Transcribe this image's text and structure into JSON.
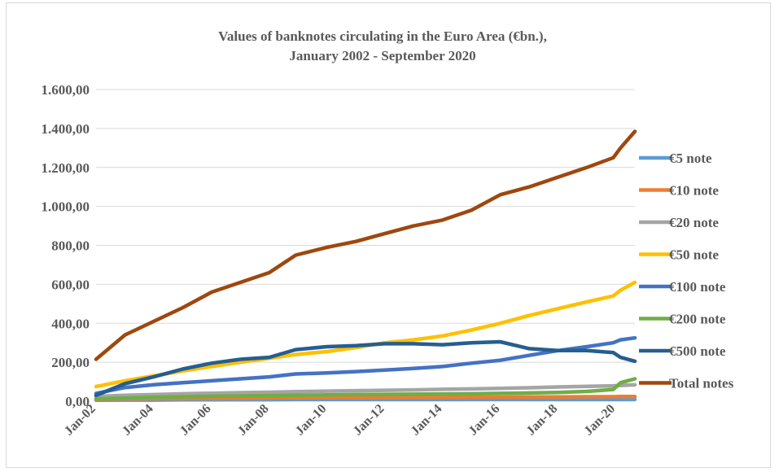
{
  "chart_data": {
    "type": "line",
    "title": "Values of banknotes circulating in the Euro Area (€bn.),",
    "subtitle": "January 2002 - September 2020",
    "xlabel": "",
    "ylabel": "",
    "ylim": [
      0,
      1600
    ],
    "y_ticks": [
      "0,00",
      "200,00",
      "400,00",
      "600,00",
      "800,00",
      "1.000,00",
      "1.200,00",
      "1.400,00",
      "1.600,00"
    ],
    "x_ticks": [
      "Jan-02",
      "Jan-04",
      "Jan-06",
      "Jan-08",
      "Jan-10",
      "Jan-12",
      "Jan-14",
      "Jan-16",
      "Jan-18",
      "Jan-20"
    ],
    "x_range": [
      "2002-01",
      "2020-09"
    ],
    "grid": true,
    "legend_position": "right",
    "x": [
      "2002-01",
      "2003-01",
      "2004-01",
      "2005-01",
      "2006-01",
      "2007-01",
      "2008-01",
      "2008-12",
      "2010-01",
      "2011-01",
      "2012-01",
      "2013-01",
      "2014-01",
      "2015-01",
      "2016-01",
      "2017-01",
      "2018-01",
      "2019-01",
      "2019-12",
      "2020-03",
      "2020-09"
    ],
    "series": [
      {
        "name": "€5 note",
        "color": "#5b9bd5",
        "values": [
          5,
          6,
          6,
          7,
          7,
          8,
          8,
          9,
          9,
          9,
          9,
          9,
          9,
          9,
          9,
          9,
          9,
          9,
          9,
          9,
          9
        ]
      },
      {
        "name": "€10 note",
        "color": "#ed7d31",
        "values": [
          10,
          12,
          13,
          14,
          15,
          16,
          17,
          18,
          19,
          19,
          20,
          20,
          20,
          21,
          21,
          22,
          22,
          23,
          23,
          24,
          24
        ]
      },
      {
        "name": "€20 note",
        "color": "#a5a5a5",
        "values": [
          25,
          30,
          34,
          38,
          41,
          44,
          46,
          49,
          52,
          54,
          56,
          58,
          61,
          63,
          66,
          69,
          73,
          76,
          79,
          81,
          84
        ]
      },
      {
        "name": "€50 note",
        "color": "#ffc000",
        "values": [
          75,
          105,
          130,
          155,
          178,
          200,
          220,
          240,
          255,
          275,
          300,
          315,
          335,
          365,
          400,
          440,
          475,
          510,
          540,
          570,
          610
        ]
      },
      {
        "name": "€100 note",
        "color": "#4472c4",
        "values": [
          40,
          70,
          85,
          95,
          105,
          115,
          125,
          140,
          145,
          152,
          160,
          168,
          178,
          195,
          210,
          235,
          260,
          280,
          300,
          315,
          325
        ]
      },
      {
        "name": "€200 note",
        "color": "#70ad47",
        "values": [
          12,
          16,
          20,
          23,
          25,
          27,
          29,
          31,
          32,
          34,
          35,
          36,
          37,
          38,
          40,
          42,
          45,
          50,
          60,
          95,
          115
        ]
      },
      {
        "name": "€500 note",
        "color": "#255e91",
        "values": [
          30,
          90,
          125,
          165,
          195,
          215,
          225,
          265,
          280,
          285,
          295,
          295,
          290,
          300,
          305,
          270,
          260,
          260,
          250,
          225,
          205
        ]
      },
      {
        "name": "Total notes",
        "color": "#9e480e",
        "values": [
          215,
          340,
          410,
          480,
          560,
          610,
          660,
          750,
          790,
          820,
          860,
          900,
          930,
          980,
          1060,
          1100,
          1150,
          1200,
          1250,
          1300,
          1385
        ]
      }
    ]
  }
}
